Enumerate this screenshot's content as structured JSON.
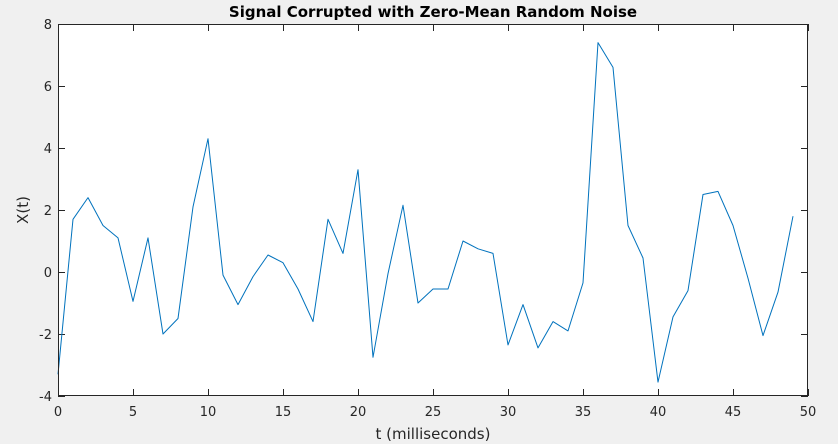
{
  "chart_data": {
    "type": "line",
    "title": "Signal Corrupted with Zero-Mean Random Noise",
    "xlabel": "t (milliseconds)",
    "ylabel": "X(t)",
    "xlim": [
      0,
      50
    ],
    "ylim": [
      -4,
      8
    ],
    "xticks": [
      0,
      5,
      10,
      15,
      20,
      25,
      30,
      35,
      40,
      45,
      50
    ],
    "yticks": [
      -4,
      -2,
      0,
      2,
      4,
      6,
      8
    ],
    "grid": false,
    "legend": "none",
    "line_color": "#0072bd",
    "series": [
      {
        "x": [
          0,
          1,
          2,
          3,
          4,
          5,
          6,
          7,
          8,
          9,
          10,
          11,
          12,
          13,
          14,
          15,
          16,
          17,
          18,
          19,
          20,
          21,
          22,
          23,
          24,
          25,
          26,
          27,
          28,
          29,
          30,
          31,
          32,
          33,
          34,
          35,
          36,
          37,
          38,
          39,
          40,
          41,
          42,
          43,
          44,
          45,
          46,
          47,
          48,
          49
        ],
        "values": [
          -3.3,
          1.7,
          2.4,
          1.5,
          1.1,
          -0.95,
          1.1,
          -2.0,
          -1.5,
          2.1,
          4.3,
          -0.1,
          -1.05,
          -0.15,
          0.55,
          0.3,
          -0.55,
          -1.6,
          1.7,
          0.6,
          3.3,
          -2.75,
          -0.05,
          2.15,
          -1.0,
          -0.55,
          -0.55,
          1.0,
          0.75,
          0.6,
          -2.35,
          -1.05,
          -2.45,
          -1.6,
          -1.9,
          -0.35,
          7.4,
          6.6,
          1.5,
          0.45,
          -3.55,
          -1.45,
          -0.6,
          2.5,
          2.6,
          1.5,
          -0.2,
          -2.05,
          -0.65,
          1.8
        ]
      }
    ]
  }
}
